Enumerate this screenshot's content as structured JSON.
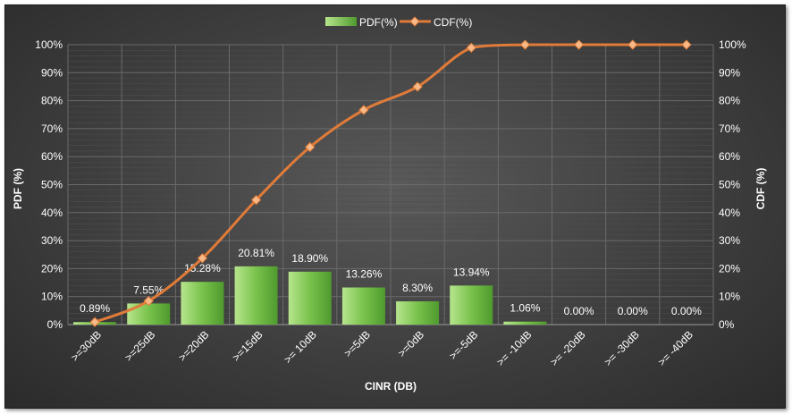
{
  "chart_data": {
    "type": "bar",
    "categories": [
      ">=30dB",
      ">=25dB",
      ">=20dB",
      ">=15dB",
      ">= 10dB",
      ">=5dB",
      ">=0dB",
      ">=-5dB",
      ">= -10dB",
      ">= -20dB",
      ">= -30dB",
      ">= -40dB"
    ],
    "series": [
      {
        "name": "PDF(%)",
        "type": "bar",
        "axis": "left",
        "values": [
          0.89,
          7.55,
          15.28,
          20.81,
          18.9,
          13.26,
          8.3,
          13.94,
          1.06,
          0.0,
          0.0,
          0.0
        ],
        "labels": [
          "0.89%",
          "7.55%",
          "15.28%",
          "20.81%",
          "18.90%",
          "13.26%",
          "8.30%",
          "13.94%",
          "1.06%",
          "0.00%",
          "0.00%",
          "0.00%"
        ],
        "color": "#6fba45"
      },
      {
        "name": "CDF(%)",
        "type": "line",
        "axis": "right",
        "values": [
          0.89,
          8.44,
          23.72,
          44.53,
          63.43,
          76.69,
          84.99,
          98.93,
          99.99,
          99.99,
          99.99,
          99.99
        ],
        "color": "#e07b39",
        "marker": "diamond",
        "smooth": true
      }
    ],
    "xlabel": "CINR (DB)",
    "ylabel": "PDF (%)",
    "y2label": "CDF (%)",
    "ylim": [
      0,
      100
    ],
    "y2lim": [
      0,
      100
    ],
    "yticks": [
      "0%",
      "10%",
      "20%",
      "30%",
      "40%",
      "50%",
      "60%",
      "70%",
      "80%",
      "90%",
      "100%"
    ],
    "legend": "top-center",
    "grid": true,
    "background": "dark"
  }
}
